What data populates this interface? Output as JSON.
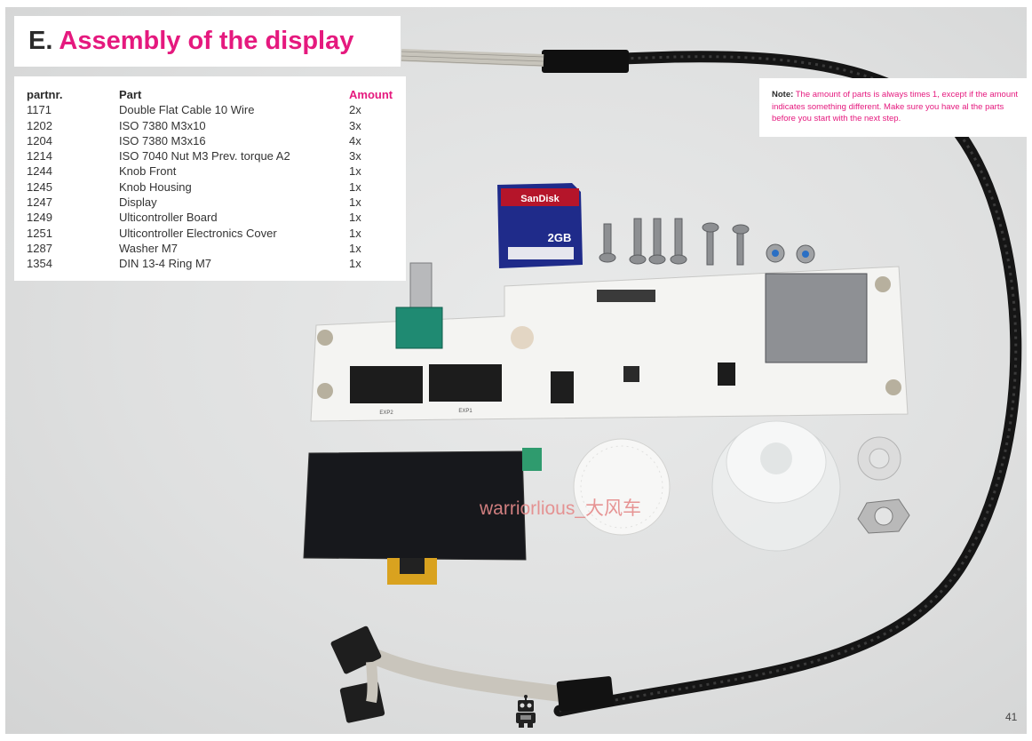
{
  "title": {
    "letter": "E.",
    "text": "Assembly of the display"
  },
  "parts_table": {
    "headers": {
      "partnr": "partnr.",
      "part": "Part",
      "amount": "Amount"
    },
    "rows": [
      {
        "partnr": "1171",
        "part": "Double Flat Cable 10 Wire",
        "amount": "2x"
      },
      {
        "partnr": "1202",
        "part": "ISO 7380 M3x10",
        "amount": "3x"
      },
      {
        "partnr": "1204",
        "part": "ISO 7380 M3x16",
        "amount": "4x"
      },
      {
        "partnr": "1214",
        "part": "ISO 7040 Nut M3 Prev. torque A2",
        "amount": "3x"
      },
      {
        "partnr": "1244",
        "part": "Knob Front",
        "amount": "1x"
      },
      {
        "partnr": "1245",
        "part": "Knob Housing",
        "amount": "1x"
      },
      {
        "partnr": "1247",
        "part": "Display",
        "amount": "1x"
      },
      {
        "partnr": "1249",
        "part": "Ulticontroller Board",
        "amount": "1x"
      },
      {
        "partnr": "1251",
        "part": "Ulticontroller Electronics Cover",
        "amount": "1x"
      },
      {
        "partnr": "1287",
        "part": "Washer M7",
        "amount": "1x"
      },
      {
        "partnr": "1354",
        "part": "DIN 13-4 Ring M7",
        "amount": "1x"
      }
    ]
  },
  "note": {
    "label": "Note:",
    "text": "The amount of parts is always times 1, except if the amount indicates something different. Make sure you have al the parts before you start with the next step."
  },
  "photo": {
    "sd_brand": "SanDisk",
    "sd_capacity": "2GB",
    "connector_left_label": "EXP2",
    "connector_right_label": "EXP1"
  },
  "watermark": "warriorlious_大风车",
  "page_number": "41",
  "colors": {
    "accent": "#e5197e",
    "dark": "#2b2b2b",
    "background": "#dfe0e0"
  }
}
